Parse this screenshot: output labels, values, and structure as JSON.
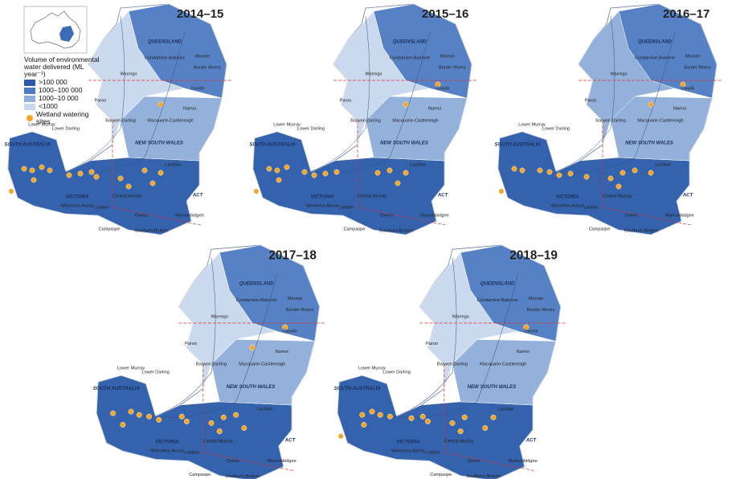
{
  "figure": {
    "legend": {
      "title": "Volume of environmental water delivered (ML year⁻¹)",
      "items": [
        ">100 000",
        "1000–100 000",
        "1000–10 000",
        "<1000"
      ],
      "sites": "Wetland watering sites"
    },
    "regions": [
      "QUEENSLAND",
      "Condamine-Balonne",
      "Moonie",
      "Border Rivers",
      "Warrego",
      "Gwydir",
      "Paroo",
      "Namoi",
      "Barwon Darling",
      "Macquarie-Castlereagh",
      "Lower Murray",
      "Lower Darling",
      "NEW SOUTH WALES",
      "SOUTH AUSTRALIA",
      "Lachlan",
      "Central Murray",
      "ACT",
      "VICTORIA",
      "Wimmera-Avoca",
      "Loddon",
      "Ovens",
      "Murrumbidgee",
      "Campaspe",
      "Goulburn-Broken"
    ],
    "panels": [
      {
        "title": "2014–15"
      },
      {
        "title": "2015–16"
      },
      {
        "title": "2016–17"
      },
      {
        "title": "2017–18"
      },
      {
        "title": "2018–19"
      }
    ]
  }
}
